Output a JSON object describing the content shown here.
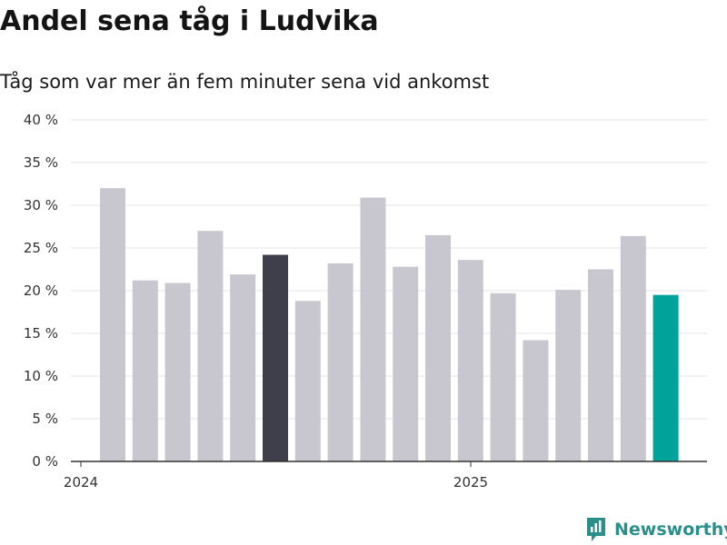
{
  "header": {
    "title": "Andel sena tåg i Ludvika",
    "subtitle": "Tåg som var mer än fem minuter sena vid ankomst"
  },
  "brand": {
    "name": "Newsworthy",
    "icon": "newsworthy-logo-icon",
    "color": "#2a8f8a"
  },
  "colors": {
    "default_bar": "#c8c7d0",
    "highlight_dark": "#3f3e4b",
    "highlight_teal": "#00a39a",
    "grid": "#e6e6e6",
    "axis": "#333333"
  },
  "chart_data": {
    "type": "bar",
    "title": "Andel sena tåg i Ludvika",
    "subtitle": "Tåg som var mer än fem minuter sena vid ankomst",
    "xlabel": "",
    "ylabel": "",
    "x_tick_labels": [
      "2024",
      "2025"
    ],
    "y_tick_labels": [
      "0 %",
      "5 %",
      "10 %",
      "15 %",
      "20 %",
      "25 %",
      "30 %",
      "35 %",
      "40 %"
    ],
    "ylim": [
      0,
      40
    ],
    "grid": true,
    "legend": "none",
    "series": [
      {
        "values": [
          32,
          21.2,
          20.9,
          27,
          21.9,
          24.2,
          18.8,
          23.2,
          30.9,
          22.8,
          26.5,
          23.6,
          19.7,
          14.2,
          20.1,
          22.5,
          26.4,
          19.5
        ],
        "highlight": {
          "5": "dark",
          "17": "teal"
        }
      }
    ]
  }
}
